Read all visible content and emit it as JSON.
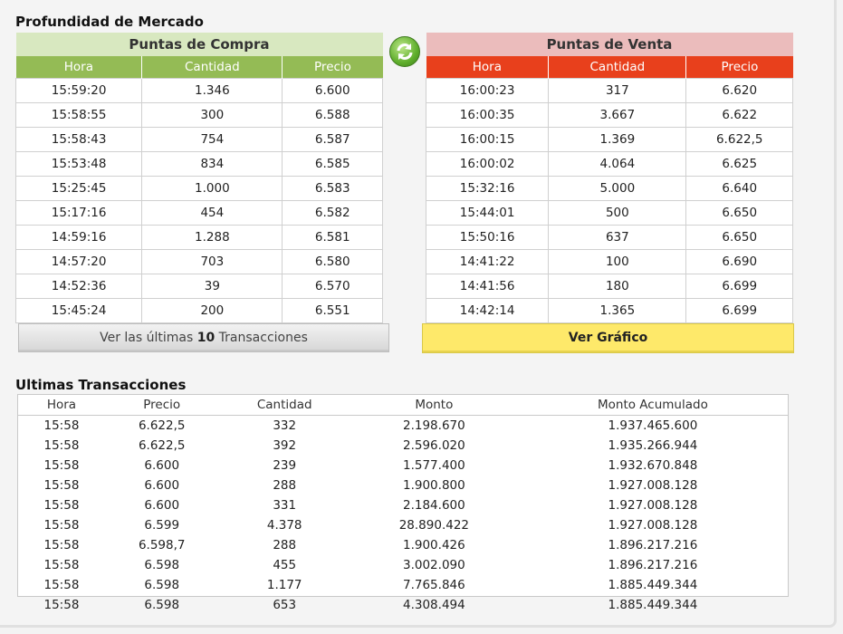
{
  "market_depth": {
    "title": "Profundidad de Mercado",
    "buy": {
      "title": "Puntas de Compra",
      "columns": [
        "Hora",
        "Cantidad",
        "Precio"
      ],
      "rows": [
        [
          "15:59:20",
          "1.346",
          "6.600"
        ],
        [
          "15:58:55",
          "300",
          "6.588"
        ],
        [
          "15:58:43",
          "754",
          "6.587"
        ],
        [
          "15:53:48",
          "834",
          "6.585"
        ],
        [
          "15:25:45",
          "1.000",
          "6.583"
        ],
        [
          "15:17:16",
          "454",
          "6.582"
        ],
        [
          "14:59:16",
          "1.288",
          "6.581"
        ],
        [
          "14:57:20",
          "703",
          "6.580"
        ],
        [
          "14:52:36",
          "39",
          "6.570"
        ],
        [
          "15:45:24",
          "200",
          "6.551"
        ]
      ],
      "header_color": "#94bb55",
      "title_bg": "#d8e8c0"
    },
    "sell": {
      "title": "Puntas de Venta",
      "columns": [
        "Hora",
        "Cantidad",
        "Precio"
      ],
      "rows": [
        [
          "16:00:23",
          "317",
          "6.620"
        ],
        [
          "16:00:35",
          "3.667",
          "6.622"
        ],
        [
          "16:00:15",
          "1.369",
          "6.622,5"
        ],
        [
          "16:00:02",
          "4.064",
          "6.625"
        ],
        [
          "15:32:16",
          "5.000",
          "6.640"
        ],
        [
          "15:44:01",
          "500",
          "6.650"
        ],
        [
          "15:50:16",
          "637",
          "6.650"
        ],
        [
          "14:41:22",
          "100",
          "6.690"
        ],
        [
          "14:41:56",
          "180",
          "6.699"
        ],
        [
          "14:42:14",
          "1.365",
          "6.699"
        ]
      ],
      "header_color": "#e8401c",
      "title_bg": "#ebbcbc"
    },
    "refresh_icon": "refresh-icon"
  },
  "buttons": {
    "last_prefix": "Ver las últimas",
    "last_count": "10",
    "last_suffix": "Transacciones",
    "chart": "Ver Gráfico",
    "chart_color": "#fee96a"
  },
  "transactions": {
    "title": "Ultimas Transacciones",
    "columns": [
      "Hora",
      "Precio",
      "Cantidad",
      "Monto",
      "Monto Acumulado"
    ],
    "rows": [
      [
        "15:58",
        "6.622,5",
        "332",
        "2.198.670",
        "1.937.465.600"
      ],
      [
        "15:58",
        "6.622,5",
        "392",
        "2.596.020",
        "1.935.266.944"
      ],
      [
        "15:58",
        "6.600",
        "239",
        "1.577.400",
        "1.932.670.848"
      ],
      [
        "15:58",
        "6.600",
        "288",
        "1.900.800",
        "1.927.008.128"
      ],
      [
        "15:58",
        "6.600",
        "331",
        "2.184.600",
        "1.927.008.128"
      ],
      [
        "15:58",
        "6.599",
        "4.378",
        "28.890.422",
        "1.927.008.128"
      ],
      [
        "15:58",
        "6.598,7",
        "288",
        "1.900.426",
        "1.896.217.216"
      ],
      [
        "15:58",
        "6.598",
        "455",
        "3.002.090",
        "1.896.217.216"
      ],
      [
        "15:58",
        "6.598",
        "1.177",
        "7.765.846",
        "1.885.449.344"
      ],
      [
        "15:58",
        "6.598",
        "653",
        "4.308.494",
        "1.885.449.344"
      ]
    ]
  }
}
